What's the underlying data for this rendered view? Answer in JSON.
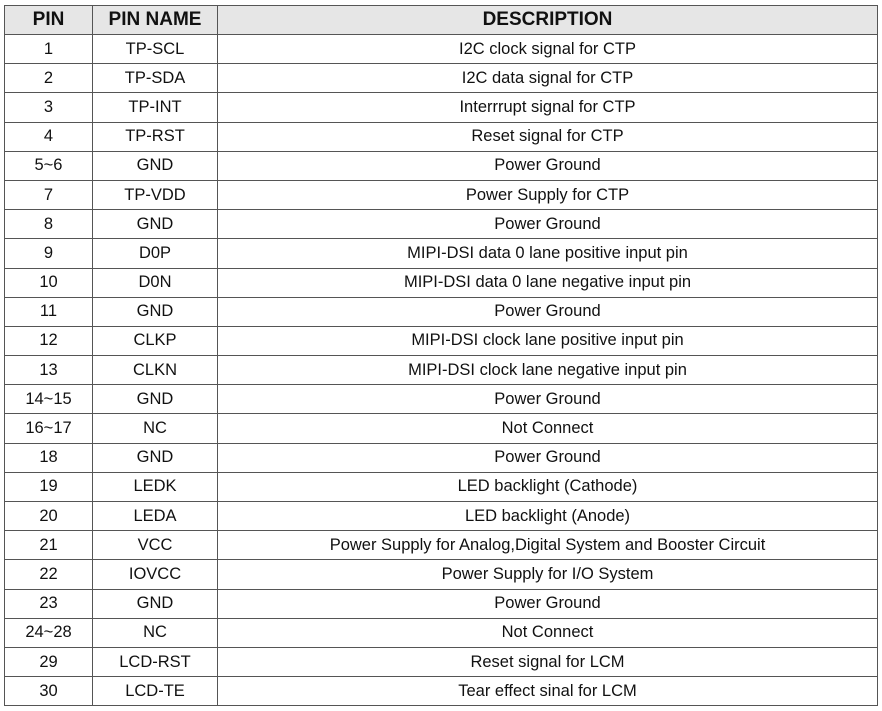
{
  "table": {
    "headers": [
      "PIN",
      "PIN NAME",
      "DESCRIPTION"
    ],
    "rows": [
      [
        "1",
        "TP-SCL",
        "I2C clock signal for CTP"
      ],
      [
        "2",
        "TP-SDA",
        "I2C data signal for CTP"
      ],
      [
        "3",
        "TP-INT",
        "Interrrupt signal for CTP"
      ],
      [
        "4",
        "TP-RST",
        "Reset signal for CTP"
      ],
      [
        "5~6",
        "GND",
        "Power Ground"
      ],
      [
        "7",
        "TP-VDD",
        "Power Supply for CTP"
      ],
      [
        "8",
        "GND",
        "Power Ground"
      ],
      [
        "9",
        "D0P",
        "MIPI-DSI data 0 lane positive input pin"
      ],
      [
        "10",
        "D0N",
        "MIPI-DSI data 0 lane negative input pin"
      ],
      [
        "11",
        "GND",
        "Power Ground"
      ],
      [
        "12",
        "CLKP",
        "MIPI-DSI clock lane positive input pin"
      ],
      [
        "13",
        "CLKN",
        "MIPI-DSI clock lane negative input pin"
      ],
      [
        "14~15",
        "GND",
        "Power Ground"
      ],
      [
        "16~17",
        "NC",
        "Not Connect"
      ],
      [
        "18",
        "GND",
        "Power Ground"
      ],
      [
        "19",
        "LEDK",
        "LED backlight (Cathode)"
      ],
      [
        "20",
        "LEDA",
        "LED backlight (Anode)"
      ],
      [
        "21",
        "VCC",
        "Power Supply for Analog,Digital System and Booster Circuit"
      ],
      [
        "22",
        "IOVCC",
        "Power Supply for I/O System"
      ],
      [
        "23",
        "GND",
        "Power Ground"
      ],
      [
        "24~28",
        "NC",
        "Not Connect"
      ],
      [
        "29",
        "LCD-RST",
        "Reset signal for LCM"
      ],
      [
        "30",
        "LCD-TE",
        "Tear effect sinal for LCM"
      ]
    ]
  }
}
